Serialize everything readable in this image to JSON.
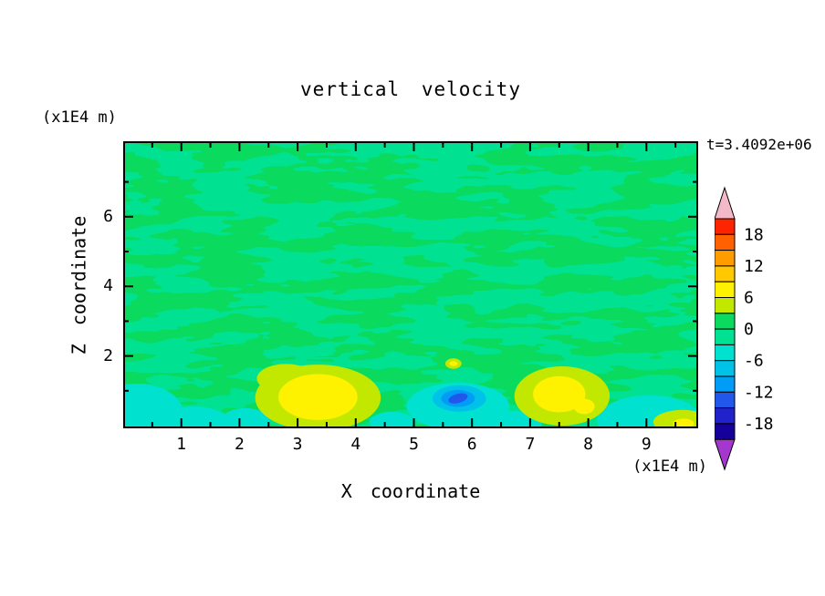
{
  "chart_data": {
    "type": "heatmap",
    "subtype": "filled_contour",
    "title": "vertical velocity",
    "time_label": "t=3.4092e+06",
    "x_axis": {
      "label": "X coordinate",
      "units": "(x1E4 m)",
      "range": [
        0,
        9.9
      ],
      "major_ticks": [
        1,
        2,
        3,
        4,
        5,
        6,
        7,
        8,
        9
      ],
      "minor_ticks": [
        0.5,
        1.5,
        2.5,
        3.5,
        4.5,
        5.5,
        6.5,
        7.5,
        8.5,
        9.5
      ]
    },
    "z_axis": {
      "label": "Z coordinate",
      "units": "(x1E4 m)",
      "range": [
        0,
        8.2
      ],
      "major_ticks": [
        2,
        4,
        6
      ],
      "minor_ticks": [
        1,
        3,
        5,
        7
      ]
    },
    "levels": {
      "min": -21,
      "max": 21,
      "interval": 3,
      "tick_values": [
        18,
        12,
        6,
        0,
        -6,
        -12,
        -18
      ],
      "over_color": "#F4B9C9",
      "under_color": "#A637CE",
      "bands": [
        {
          "from": 18,
          "to": 21,
          "color": "#FF2400"
        },
        {
          "from": 15,
          "to": 18,
          "color": "#FF6000"
        },
        {
          "from": 12,
          "to": 15,
          "color": "#FF9C00"
        },
        {
          "from": 9,
          "to": 12,
          "color": "#FFC800"
        },
        {
          "from": 6,
          "to": 9,
          "color": "#FFF200"
        },
        {
          "from": 3,
          "to": 6,
          "color": "#C3E800"
        },
        {
          "from": 0,
          "to": 3,
          "color": "#0ADB5F"
        },
        {
          "from": -3,
          "to": 0,
          "color": "#00E291"
        },
        {
          "from": -6,
          "to": -3,
          "color": "#00E2CF"
        },
        {
          "from": -9,
          "to": -6,
          "color": "#00C2E8"
        },
        {
          "from": -12,
          "to": -9,
          "color": "#009CF5"
        },
        {
          "from": -15,
          "to": -12,
          "color": "#2257EB"
        },
        {
          "from": -18,
          "to": -15,
          "color": "#2222CD"
        },
        {
          "from": -21,
          "to": -18,
          "color": "#16009A"
        }
      ]
    },
    "background_value": -1.5,
    "texture_value": 1.5,
    "features": [
      {
        "x": 0.25,
        "z": 0.35,
        "rx": 0.78,
        "ry": 0.85,
        "value": -4
      },
      {
        "x": 1.2,
        "z": 0.05,
        "rx": 0.65,
        "ry": 0.5,
        "value": -4
      },
      {
        "x": 2.1,
        "z": 0.12,
        "rx": 0.42,
        "ry": 0.38,
        "value": -4
      },
      {
        "x": 4.62,
        "z": 0.1,
        "rx": 0.38,
        "ry": 0.3,
        "value": -4
      },
      {
        "x": 5.76,
        "z": 0.55,
        "rx": 0.88,
        "ry": 0.68,
        "value": -4
      },
      {
        "x": 6.7,
        "z": 0.02,
        "rx": 0.5,
        "ry": 0.4,
        "value": -4
      },
      {
        "x": 9.05,
        "z": 0.15,
        "rx": 0.9,
        "ry": 0.72,
        "value": -4
      },
      {
        "x": 2.8,
        "z": 1.35,
        "rx": 0.5,
        "ry": 0.42,
        "value": 4
      },
      {
        "x": 3.35,
        "z": 0.8,
        "rx": 1.08,
        "ry": 0.95,
        "value": 4
      },
      {
        "x": 7.55,
        "z": 0.85,
        "rx": 0.82,
        "ry": 0.85,
        "value": 4
      },
      {
        "x": 9.62,
        "z": 0.1,
        "rx": 0.5,
        "ry": 0.35,
        "value": 4
      },
      {
        "x": 5.68,
        "z": 1.78,
        "rx": 0.14,
        "ry": 0.15,
        "value": 4
      },
      {
        "x": 3.35,
        "z": 0.82,
        "rx": 0.68,
        "ry": 0.66,
        "value": 7
      },
      {
        "x": 7.5,
        "z": 0.9,
        "rx": 0.45,
        "ry": 0.52,
        "value": 7
      },
      {
        "x": 7.93,
        "z": 0.55,
        "rx": 0.18,
        "ry": 0.22,
        "value": 7
      },
      {
        "x": 9.64,
        "z": 0.06,
        "rx": 0.18,
        "ry": 0.14,
        "value": 7
      },
      {
        "x": 5.68,
        "z": 1.78,
        "rx": 0.07,
        "ry": 0.07,
        "value": 7
      },
      {
        "x": 5.78,
        "z": 0.78,
        "rx": 0.46,
        "ry": 0.38,
        "value": -7
      },
      {
        "x": 5.76,
        "z": 0.78,
        "rx": 0.29,
        "ry": 0.24,
        "value": -10
      },
      {
        "x": 5.76,
        "z": 0.78,
        "rx": 0.17,
        "ry": 0.13,
        "value": -13,
        "tilt": -15
      }
    ]
  }
}
